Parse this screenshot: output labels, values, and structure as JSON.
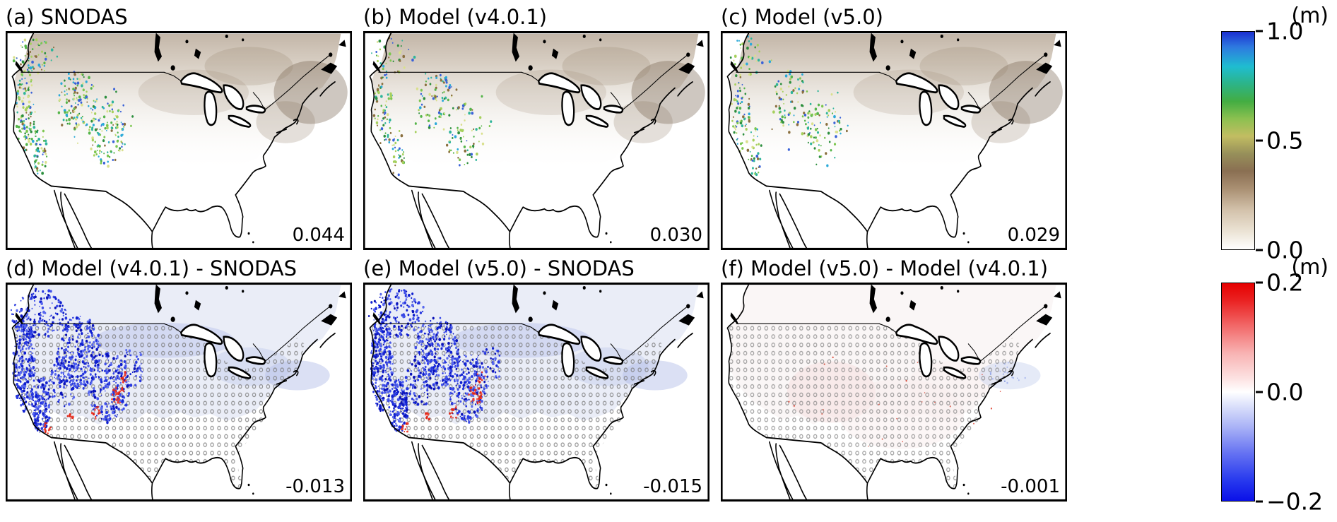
{
  "figure": {
    "rows": [
      {
        "unit": "(m)",
        "colorbar": {
          "min": 0.0,
          "max": 1.0,
          "ticks": [
            "1.0",
            "0.5",
            "0.0"
          ]
        },
        "panels": [
          {
            "title": "(a) SNODAS",
            "value": "0.044"
          },
          {
            "title": "(b) Model (v4.0.1)",
            "value": "0.030"
          },
          {
            "title": "(c) Model (v5.0)",
            "value": "0.029"
          }
        ]
      },
      {
        "unit": "(m)",
        "colorbar": {
          "min": -0.2,
          "max": 0.2,
          "ticks": [
            "0.2",
            "0.0",
            "−0.2"
          ]
        },
        "panels": [
          {
            "title": "(d) Model (v4.0.1) - SNODAS",
            "value": "-0.013"
          },
          {
            "title": "(e) Model (v5.0) - SNODAS",
            "value": "-0.015"
          },
          {
            "title": "(f) Model (v5.0) - Model (v4.0.1)",
            "value": "-0.001"
          }
        ]
      }
    ]
  },
  "chart_data": {
    "type": "heatmap",
    "subtype": "geographic-map-panels",
    "region": "Continental United States with surrounding Canada/Mexico coastlines and Great Lakes",
    "variable_unit": "m",
    "panels": [
      {
        "id": "a",
        "title": "(a) SNODAS",
        "domain_mean": 0.044,
        "colorbar": "top"
      },
      {
        "id": "b",
        "title": "(b) Model (v4.0.1)",
        "domain_mean": 0.03,
        "colorbar": "top"
      },
      {
        "id": "c",
        "title": "(c) Model (v5.0)",
        "domain_mean": 0.029,
        "colorbar": "top"
      },
      {
        "id": "d",
        "title": "(d) Model (v4.0.1) - SNODAS",
        "domain_mean": -0.013,
        "colorbar": "bottom"
      },
      {
        "id": "e",
        "title": "(e) Model (v5.0) - SNODAS",
        "domain_mean": -0.015,
        "colorbar": "bottom"
      },
      {
        "id": "f",
        "title": "(f) Model (v5.0) - Model (v4.0.1)",
        "domain_mean": -0.001,
        "colorbar": "bottom"
      }
    ],
    "colorbars": [
      {
        "id": "top",
        "unit": "(m)",
        "range": [
          0.0,
          1.0
        ],
        "ticks": [
          0.0,
          0.5,
          1.0
        ],
        "orientation": "vertical",
        "colors_bottom_to_top": [
          "#ffffff",
          "#d3c2ab",
          "#8a6f52",
          "#c2bd62",
          "#43ad42",
          "#1fbdd0",
          "#1b2fd0"
        ]
      },
      {
        "id": "bottom",
        "unit": "(m)",
        "range": [
          -0.2,
          0.2
        ],
        "ticks": [
          -0.2,
          0.0,
          0.2
        ],
        "orientation": "vertical",
        "colors_bottom_to_top": [
          "#0a10e8",
          "#aab3f6",
          "#ffffff",
          "#f8b2b2",
          "#e60000"
        ]
      }
    ],
    "layout": {
      "rows": 2,
      "cols": 3,
      "shared_colorbar_per_row": true,
      "stippling_on_difference_panels": true
    }
  }
}
